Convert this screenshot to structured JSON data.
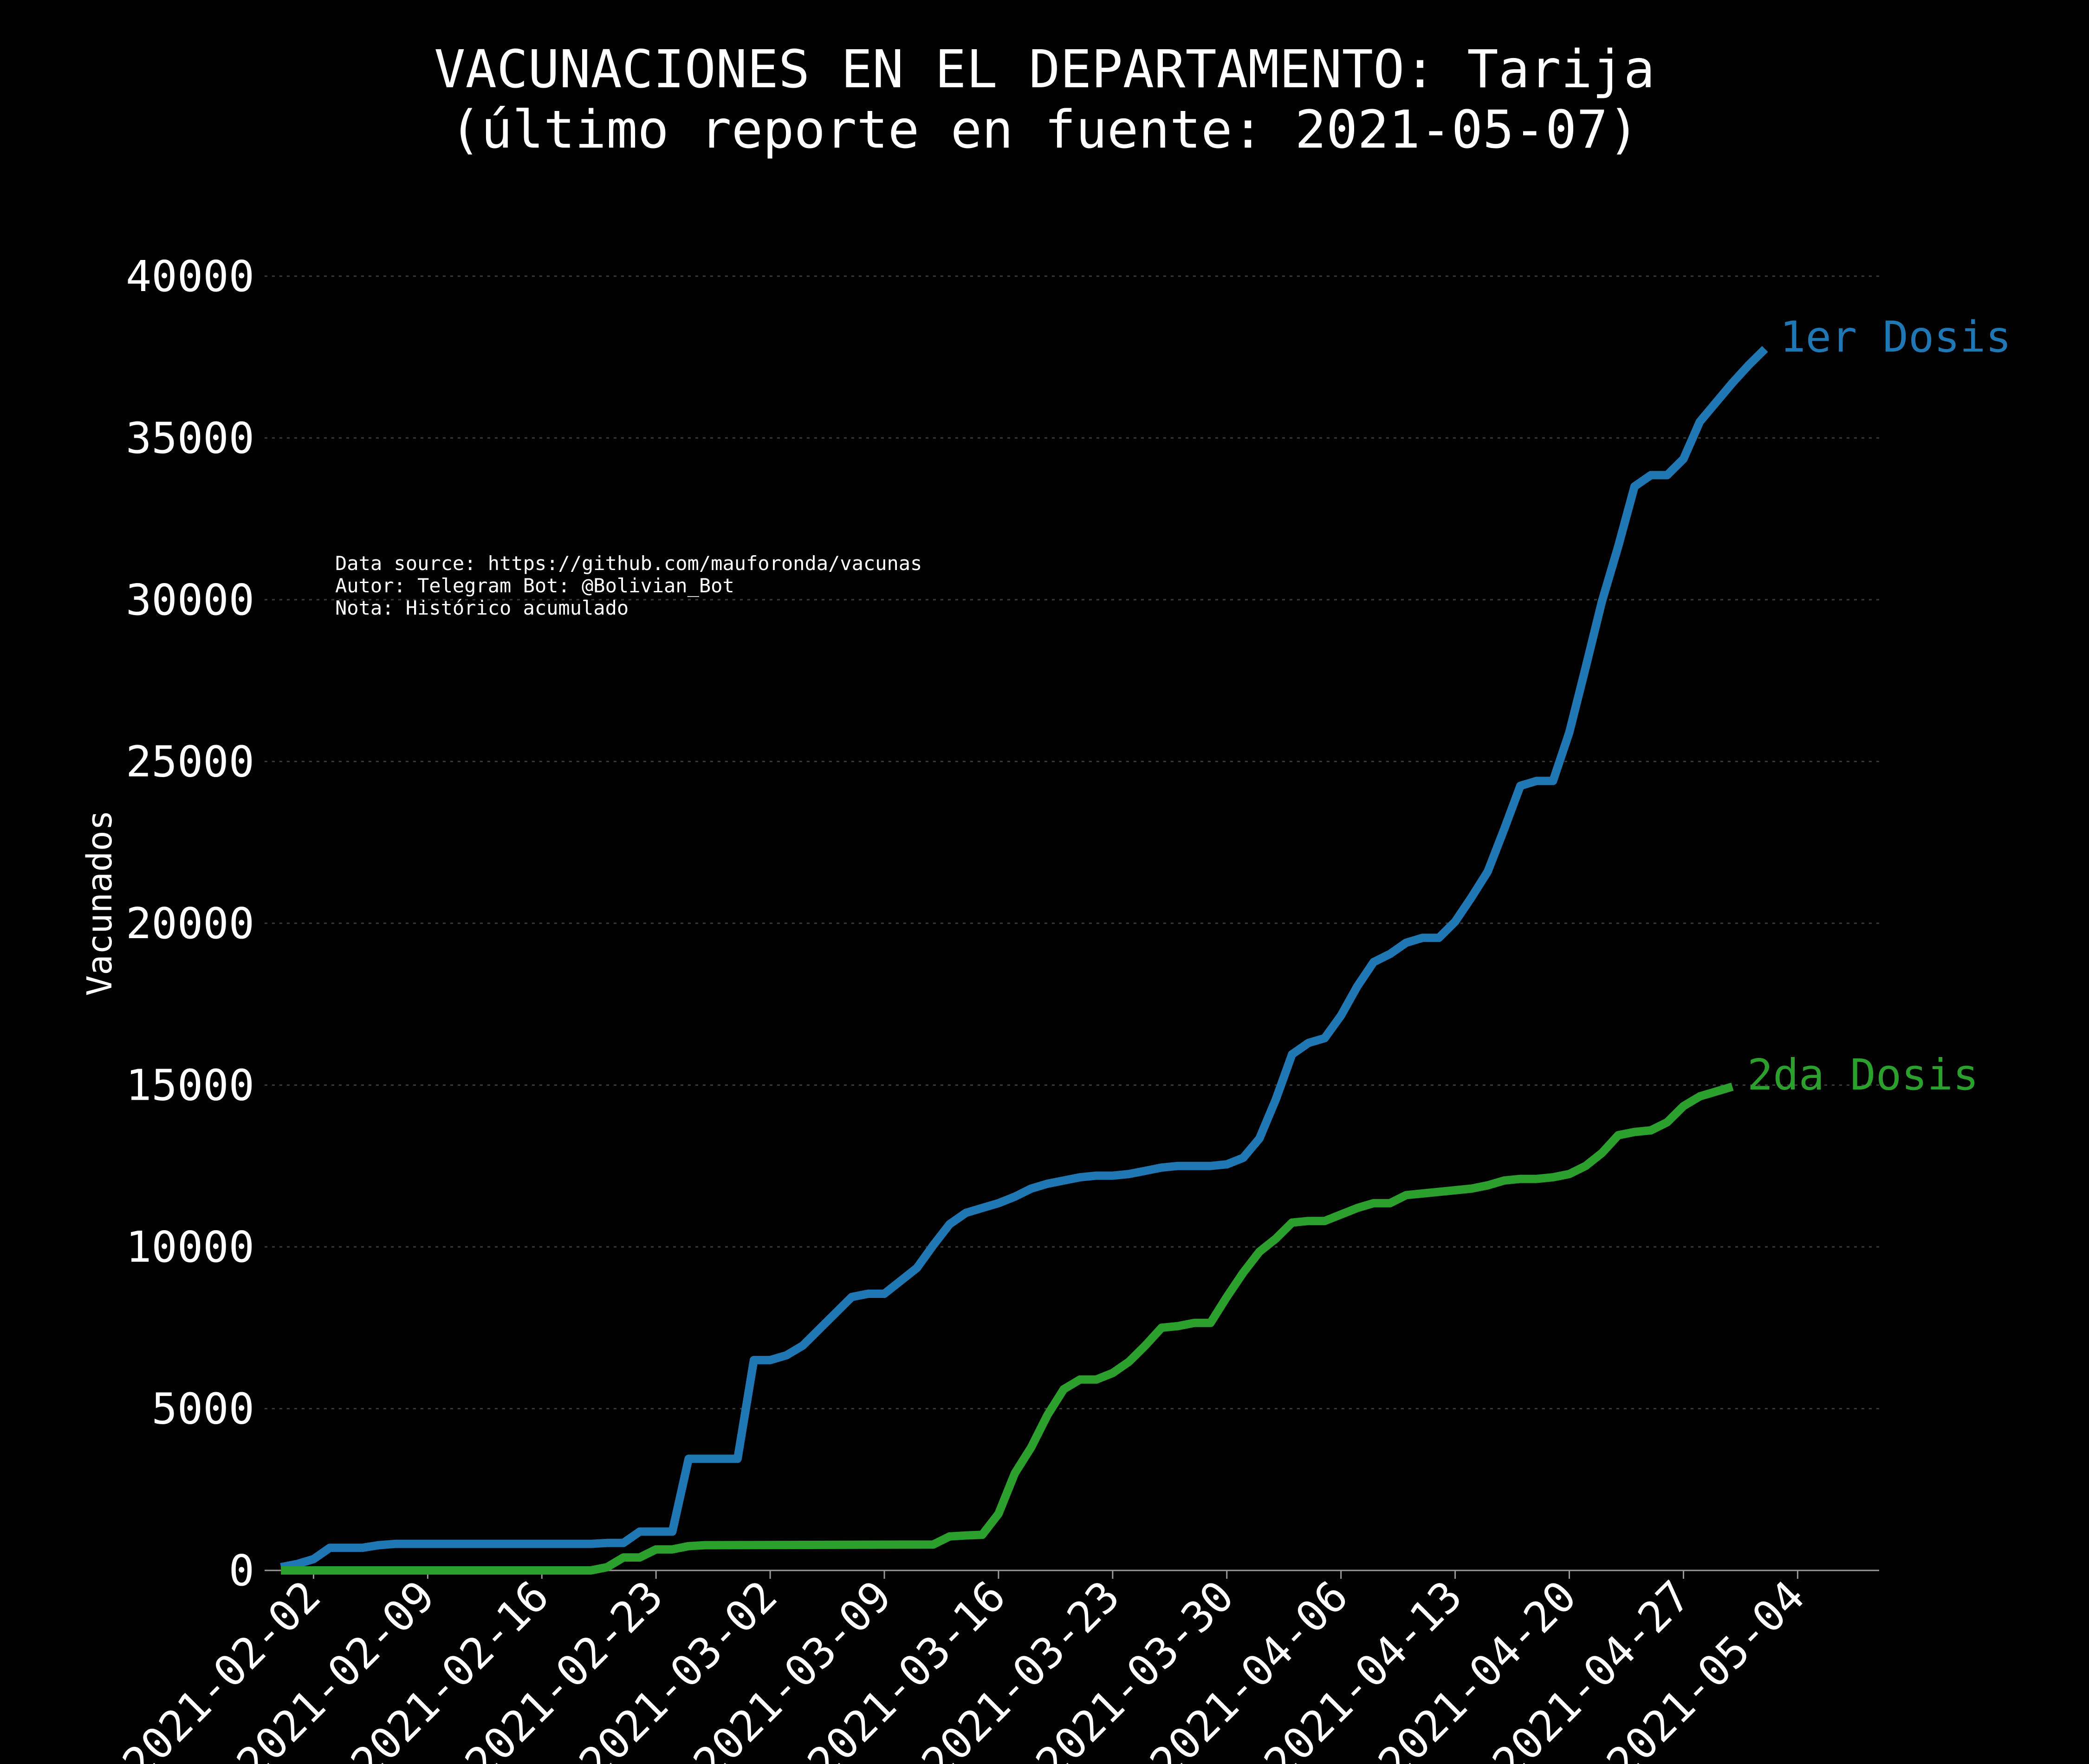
{
  "chart_data": {
    "type": "line",
    "title": "VACUNACIONES EN EL DEPARTAMENTO: Tarija",
    "subtitle": "(último reporte en fuente: 2021-05-07)",
    "xlabel": "",
    "ylabel": "Vacunados",
    "ylim": [
      0,
      40500
    ],
    "yticks": [
      0,
      5000,
      10000,
      15000,
      20000,
      25000,
      30000,
      35000,
      40000
    ],
    "xlim": [
      "2021-01-30",
      "2021-05-09"
    ],
    "xticks": [
      "2021-02-02",
      "2021-02-09",
      "2021-02-16",
      "2021-02-23",
      "2021-03-02",
      "2021-03-09",
      "2021-03-16",
      "2021-03-23",
      "2021-03-30",
      "2021-04-06",
      "2021-04-13",
      "2021-04-20",
      "2021-04-27",
      "2021-05-04"
    ],
    "grid": "horizontal dotted",
    "legend": "labels at line ends",
    "notes": [
      "Data source: https://github.com/mauforonda/vacunas",
      "Autor: Telegram Bot: @Bolivian_Bot",
      "Nota: Histórico acumulado"
    ],
    "series": [
      {
        "name": "1er Dosis",
        "color": "#1f77b4",
        "points": [
          [
            "2021-01-31",
            100
          ],
          [
            "2021-02-01",
            200
          ],
          [
            "2021-02-02",
            350
          ],
          [
            "2021-02-03",
            700
          ],
          [
            "2021-02-04",
            700
          ],
          [
            "2021-02-05",
            700
          ],
          [
            "2021-02-06",
            780
          ],
          [
            "2021-02-07",
            820
          ],
          [
            "2021-02-08",
            820
          ],
          [
            "2021-02-18",
            820
          ],
          [
            "2021-02-19",
            820
          ],
          [
            "2021-02-20",
            850
          ],
          [
            "2021-02-21",
            850
          ],
          [
            "2021-02-22",
            1200
          ],
          [
            "2021-02-23",
            1200
          ],
          [
            "2021-02-24",
            1200
          ],
          [
            "2021-02-25",
            3450
          ],
          [
            "2021-02-26",
            3450
          ],
          [
            "2021-02-27",
            3450
          ],
          [
            "2021-02-28",
            3450
          ],
          [
            "2021-03-01",
            6500
          ],
          [
            "2021-03-02",
            6500
          ],
          [
            "2021-03-03",
            6650
          ],
          [
            "2021-03-04",
            6950
          ],
          [
            "2021-03-05",
            7450
          ],
          [
            "2021-03-06",
            7950
          ],
          [
            "2021-03-07",
            8450
          ],
          [
            "2021-03-08",
            8550
          ],
          [
            "2021-03-09",
            8550
          ],
          [
            "2021-03-10",
            8950
          ],
          [
            "2021-03-11",
            9350
          ],
          [
            "2021-03-12",
            10050
          ],
          [
            "2021-03-13",
            10700
          ],
          [
            "2021-03-14",
            11050
          ],
          [
            "2021-03-15",
            11200
          ],
          [
            "2021-03-16",
            11350
          ],
          [
            "2021-03-17",
            11550
          ],
          [
            "2021-03-18",
            11800
          ],
          [
            "2021-03-19",
            11950
          ],
          [
            "2021-03-20",
            12050
          ],
          [
            "2021-03-21",
            12150
          ],
          [
            "2021-03-22",
            12200
          ],
          [
            "2021-03-23",
            12200
          ],
          [
            "2021-03-24",
            12250
          ],
          [
            "2021-03-25",
            12350
          ],
          [
            "2021-03-26",
            12450
          ],
          [
            "2021-03-27",
            12500
          ],
          [
            "2021-03-28",
            12500
          ],
          [
            "2021-03-29",
            12500
          ],
          [
            "2021-03-30",
            12550
          ],
          [
            "2021-03-31",
            12750
          ],
          [
            "2021-04-01",
            13350
          ],
          [
            "2021-04-02",
            14550
          ],
          [
            "2021-04-03",
            15950
          ],
          [
            "2021-04-04",
            16300
          ],
          [
            "2021-04-05",
            16450
          ],
          [
            "2021-04-06",
            17150
          ],
          [
            "2021-04-07",
            18050
          ],
          [
            "2021-04-08",
            18800
          ],
          [
            "2021-04-09",
            19050
          ],
          [
            "2021-04-10",
            19400
          ],
          [
            "2021-04-11",
            19550
          ],
          [
            "2021-04-12",
            19550
          ],
          [
            "2021-04-13",
            20050
          ],
          [
            "2021-04-14",
            20800
          ],
          [
            "2021-04-15",
            21600
          ],
          [
            "2021-04-16",
            22900
          ],
          [
            "2021-04-17",
            24250
          ],
          [
            "2021-04-18",
            24400
          ],
          [
            "2021-04-19",
            24400
          ],
          [
            "2021-04-20",
            25900
          ],
          [
            "2021-04-21",
            27900
          ],
          [
            "2021-04-22",
            29950
          ],
          [
            "2021-04-23",
            31650
          ],
          [
            "2021-04-24",
            33500
          ],
          [
            "2021-04-25",
            33850
          ],
          [
            "2021-04-26",
            33850
          ],
          [
            "2021-04-27",
            34350
          ],
          [
            "2021-04-28",
            35500
          ],
          [
            "2021-04-29",
            36100
          ],
          [
            "2021-04-30",
            36700
          ],
          [
            "2021-05-01",
            37250
          ],
          [
            "2021-05-02",
            37750
          ]
        ]
      },
      {
        "name": "2da Dosis",
        "color": "#2ca02c",
        "points": [
          [
            "2021-01-31",
            0
          ],
          [
            "2021-02-19",
            0
          ],
          [
            "2021-02-20",
            100
          ],
          [
            "2021-02-21",
            400
          ],
          [
            "2021-02-22",
            400
          ],
          [
            "2021-02-23",
            650
          ],
          [
            "2021-02-24",
            650
          ],
          [
            "2021-02-25",
            750
          ],
          [
            "2021-02-26",
            780
          ],
          [
            "2021-03-12",
            800
          ],
          [
            "2021-03-13",
            1050
          ],
          [
            "2021-03-14",
            1080
          ],
          [
            "2021-03-15",
            1100
          ],
          [
            "2021-03-16",
            1750
          ],
          [
            "2021-03-17",
            3000
          ],
          [
            "2021-03-18",
            3800
          ],
          [
            "2021-03-19",
            4800
          ],
          [
            "2021-03-20",
            5600
          ],
          [
            "2021-03-21",
            5900
          ],
          [
            "2021-03-22",
            5900
          ],
          [
            "2021-03-23",
            6100
          ],
          [
            "2021-03-24",
            6450
          ],
          [
            "2021-03-25",
            6950
          ],
          [
            "2021-03-26",
            7500
          ],
          [
            "2021-03-27",
            7550
          ],
          [
            "2021-03-28",
            7650
          ],
          [
            "2021-03-29",
            7650
          ],
          [
            "2021-03-30",
            8450
          ],
          [
            "2021-03-31",
            9200
          ],
          [
            "2021-04-01",
            9850
          ],
          [
            "2021-04-02",
            10250
          ],
          [
            "2021-04-03",
            10750
          ],
          [
            "2021-04-04",
            10800
          ],
          [
            "2021-04-05",
            10800
          ],
          [
            "2021-04-06",
            11000
          ],
          [
            "2021-04-07",
            11200
          ],
          [
            "2021-04-08",
            11350
          ],
          [
            "2021-04-09",
            11350
          ],
          [
            "2021-04-10",
            11600
          ],
          [
            "2021-04-11",
            11650
          ],
          [
            "2021-04-12",
            11700
          ],
          [
            "2021-04-13",
            11750
          ],
          [
            "2021-04-14",
            11800
          ],
          [
            "2021-04-15",
            11900
          ],
          [
            "2021-04-16",
            12050
          ],
          [
            "2021-04-17",
            12100
          ],
          [
            "2021-04-18",
            12100
          ],
          [
            "2021-04-19",
            12150
          ],
          [
            "2021-04-20",
            12250
          ],
          [
            "2021-04-21",
            12500
          ],
          [
            "2021-04-22",
            12900
          ],
          [
            "2021-04-23",
            13450
          ],
          [
            "2021-04-24",
            13550
          ],
          [
            "2021-04-25",
            13600
          ],
          [
            "2021-04-26",
            13850
          ],
          [
            "2021-04-27",
            14350
          ],
          [
            "2021-04-28",
            14650
          ],
          [
            "2021-04-29",
            14800
          ],
          [
            "2021-04-30",
            14950
          ]
        ]
      }
    ]
  }
}
